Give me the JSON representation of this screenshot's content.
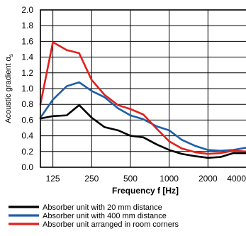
{
  "chart_data": {
    "type": "line",
    "xlabel": "Frequency f [Hz]",
    "ylabel": "Acoustic gradient α",
    "ylabel_subscript": "s",
    "x_scale": "log",
    "x_ticks": [
      125,
      250,
      500,
      1000,
      2000,
      4000
    ],
    "x_tick_labels": [
      "125",
      "250",
      "500",
      "1000",
      "2000",
      "4000"
    ],
    "xlim": [
      100,
      4000
    ],
    "ylim": [
      0,
      2.0
    ],
    "y_ticks": [
      0.0,
      0.2,
      0.4,
      0.6,
      0.8,
      1.0,
      1.2,
      1.4,
      1.6,
      1.8,
      2.0
    ],
    "y_tick_labels": [
      "0.0",
      "0.2",
      "0.4",
      "0.6",
      "0.8",
      "1.0",
      "1.2",
      "1.4",
      "1.6",
      "1.8",
      "2.0"
    ],
    "grid": true,
    "legend_position": "bottom",
    "x": [
      100,
      125,
      160,
      200,
      250,
      315,
      400,
      500,
      630,
      800,
      1000,
      1250,
      1600,
      2000,
      2500,
      3150,
      4000
    ],
    "series": [
      {
        "name": "Absorber unit with 20 mm distance",
        "color": "#000000",
        "values": [
          0.62,
          0.65,
          0.66,
          0.79,
          0.63,
          0.51,
          0.47,
          0.4,
          0.38,
          0.29,
          0.22,
          0.17,
          0.14,
          0.12,
          0.13,
          0.18,
          0.18
        ]
      },
      {
        "name": "Absorber unit with 400 mm distance",
        "color": "#1f5fa8",
        "values": [
          0.63,
          0.86,
          1.03,
          1.08,
          0.97,
          0.89,
          0.75,
          0.66,
          0.61,
          0.52,
          0.47,
          0.35,
          0.27,
          0.22,
          0.21,
          0.22,
          0.25
        ]
      },
      {
        "name": "Absorber unit arranged in room corners",
        "color": "#e3201b",
        "values": [
          0.8,
          1.59,
          1.49,
          1.45,
          1.11,
          0.92,
          0.79,
          0.74,
          0.67,
          0.49,
          0.33,
          0.24,
          0.19,
          0.17,
          0.18,
          0.21,
          0.2
        ]
      }
    ]
  }
}
